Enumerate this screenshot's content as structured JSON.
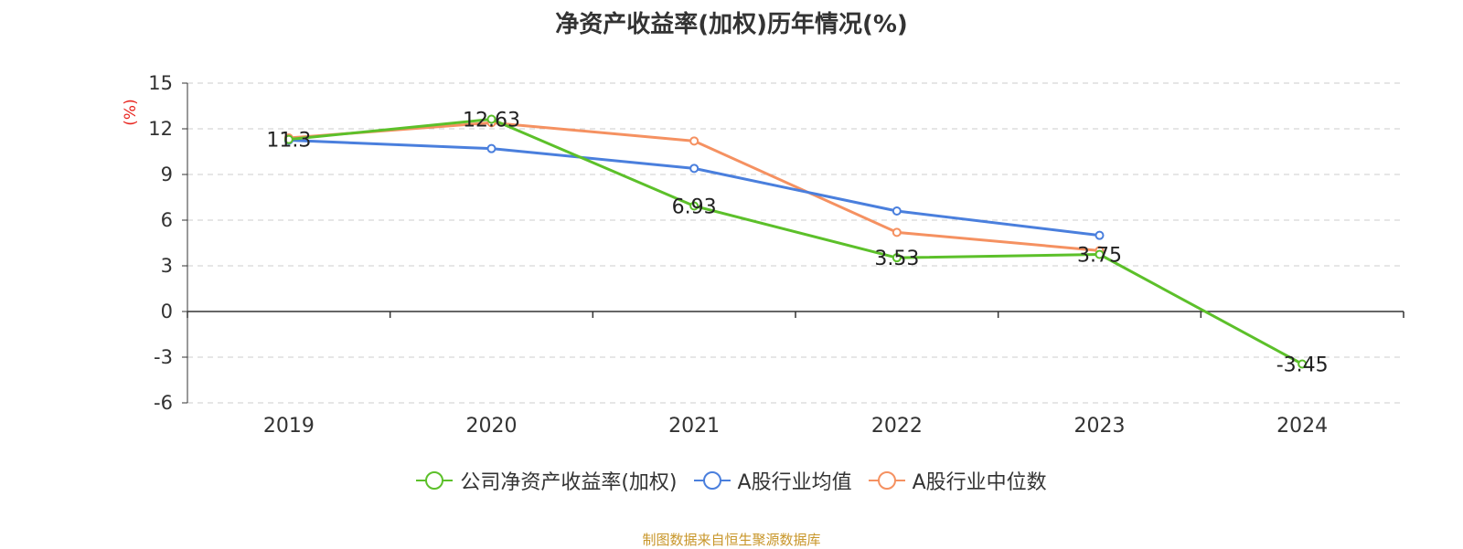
{
  "chart_data": {
    "type": "line",
    "title": "净资产收益率(加权)历年情况(%)",
    "ylabel": "(%)",
    "xlabel": "",
    "categories": [
      "2019",
      "2020",
      "2021",
      "2022",
      "2023",
      "2024"
    ],
    "yticks": [
      15,
      12,
      9,
      6,
      3,
      0,
      -3,
      -6
    ],
    "ylim": [
      -6,
      15
    ],
    "grid": true,
    "legend_position": "bottom-center",
    "series": [
      {
        "name": "公司净资产收益率(加权)",
        "color": "#5cc02a",
        "marker": "circle",
        "values": [
          11.3,
          12.63,
          6.93,
          3.53,
          3.75,
          -3.45
        ],
        "labels": [
          "11.3",
          "12.63",
          "6.93",
          "3.53",
          "3.75",
          "-3.45"
        ]
      },
      {
        "name": "A股行业均值",
        "color": "#4a7fdd",
        "marker": "circle",
        "values": [
          11.25,
          10.7,
          9.4,
          6.6,
          5.0,
          null
        ],
        "labels": null
      },
      {
        "name": "A股行业中位数",
        "color": "#f59161",
        "marker": "circle",
        "values": [
          11.4,
          12.4,
          11.2,
          5.2,
          4.0,
          null
        ],
        "labels": null
      }
    ]
  },
  "source_note": "制图数据来自恒生聚源数据库"
}
